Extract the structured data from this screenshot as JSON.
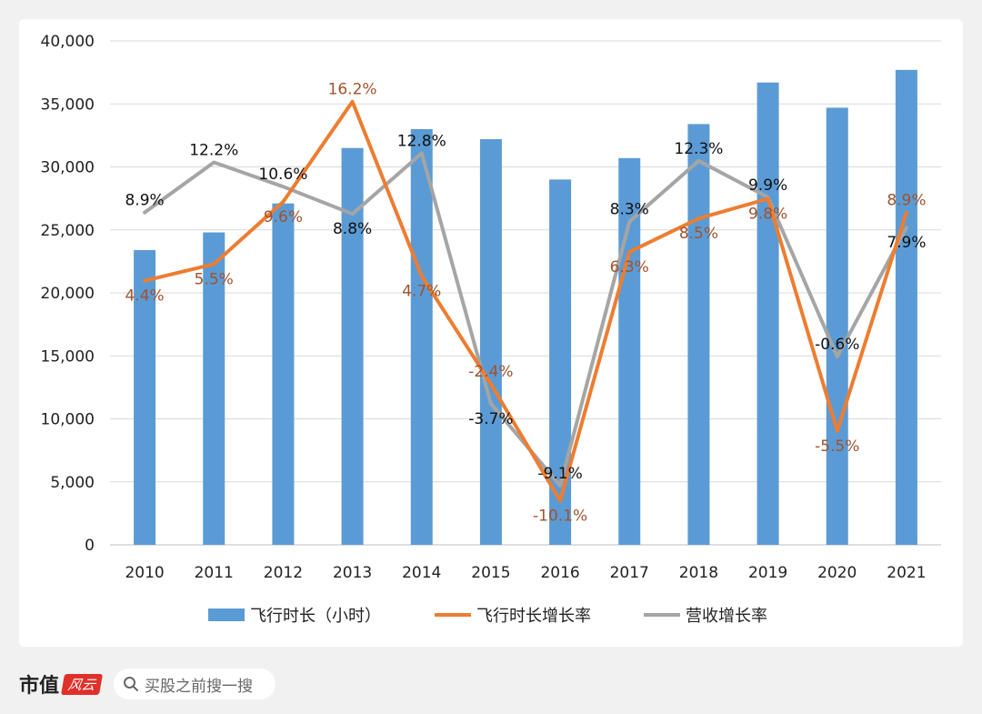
{
  "chart_data": {
    "type": "bar",
    "categories": [
      "2010",
      "2011",
      "2012",
      "2013",
      "2014",
      "2015",
      "2016",
      "2017",
      "2018",
      "2019",
      "2020",
      "2021"
    ],
    "y_ticks": [
      "0",
      "5,000",
      "10,000",
      "15,000",
      "20,000",
      "25,000",
      "30,000",
      "35,000",
      "40,000"
    ],
    "ylim": [
      0,
      40000
    ],
    "grid": true,
    "legend_position": "bottom",
    "series": [
      {
        "name": "飞行时长（小时）",
        "type": "bar",
        "color": "#5b9bd5",
        "values": [
          23400,
          24800,
          27100,
          31500,
          33000,
          32200,
          29000,
          30700,
          33400,
          36700,
          34700,
          37700
        ]
      },
      {
        "name": "飞行时长增长率",
        "type": "line",
        "color": "#ed7d31",
        "label_color": "#a0522d",
        "values": [
          4.4,
          5.5,
          9.6,
          16.2,
          4.7,
          -2.4,
          -10.1,
          6.3,
          8.5,
          9.8,
          -5.5,
          8.9
        ],
        "labels": [
          "4.4%",
          "5.5%",
          "9.6%",
          "16.2%",
          "4.7%",
          "-2.4%",
          "-10.1%",
          "6.3%",
          "8.5%",
          "9.8%",
          "-5.5%",
          "8.9%"
        ]
      },
      {
        "name": "营收增长率",
        "type": "line",
        "color": "#a5a5a5",
        "label_color": "#111111",
        "values": [
          8.9,
          12.2,
          10.6,
          8.8,
          12.8,
          -3.7,
          -9.1,
          8.3,
          12.3,
          9.9,
          -0.6,
          7.9
        ],
        "labels": [
          "8.9%",
          "12.2%",
          "10.6%",
          "8.8%",
          "12.8%",
          "-3.7%",
          "-9.1%",
          "8.3%",
          "12.3%",
          "9.9%",
          "-0.6%",
          "7.9%"
        ]
      }
    ]
  },
  "footer": {
    "brand": "市值",
    "brand_mark": "风云",
    "search_placeholder": "买股之前搜一搜",
    "icon": "search-icon"
  }
}
